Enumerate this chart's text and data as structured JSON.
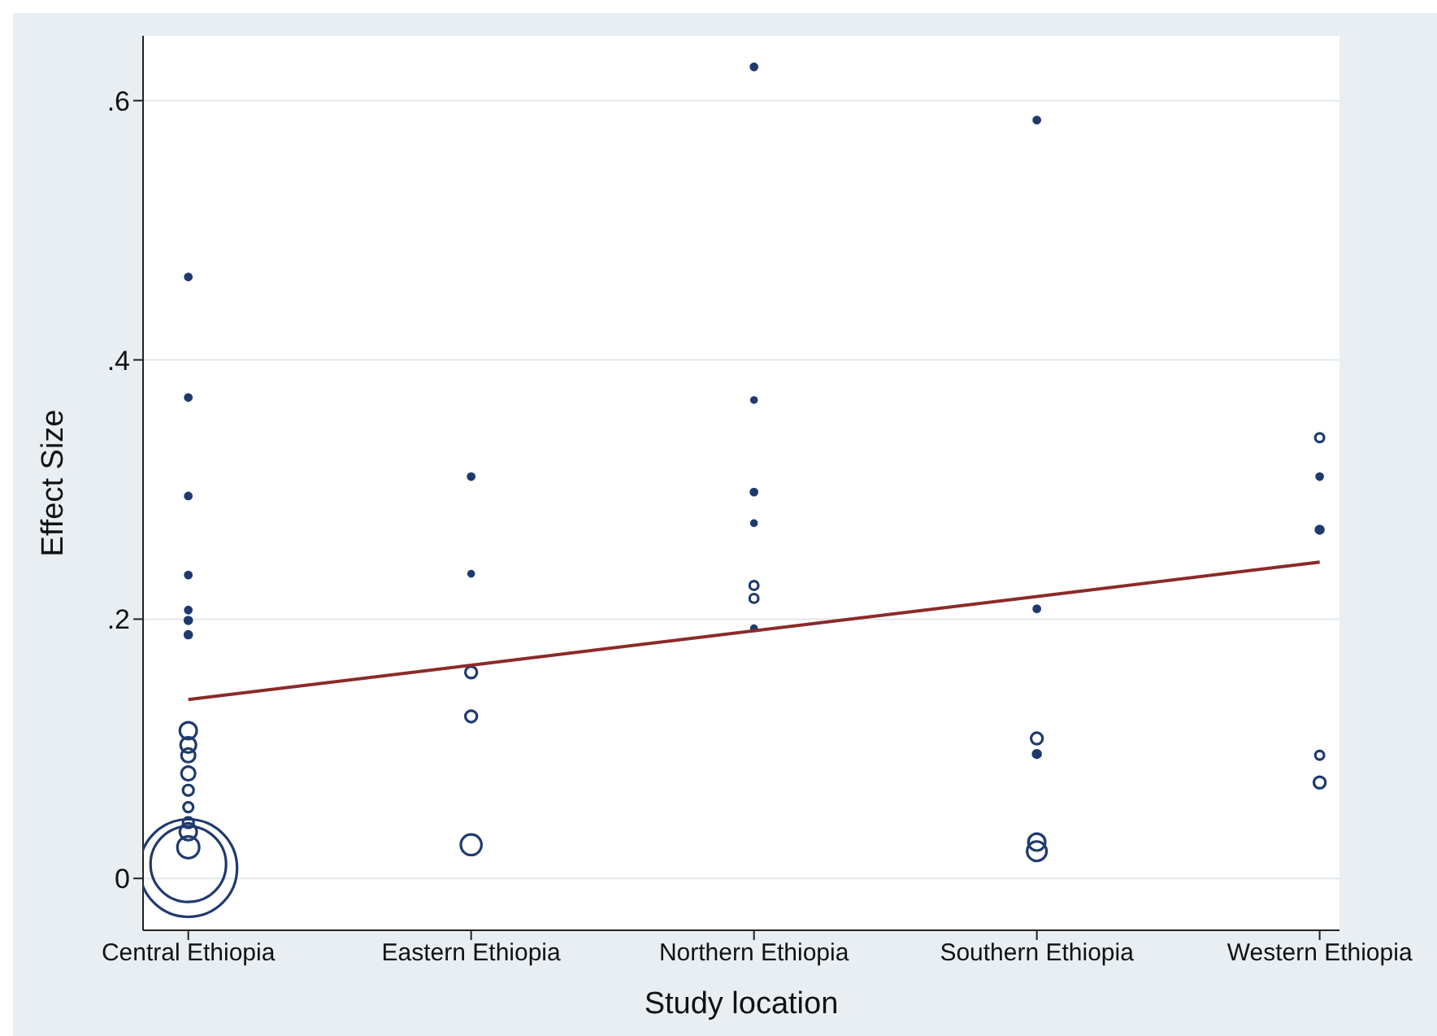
{
  "chart_data": {
    "type": "bubble",
    "xlabel": "Study location",
    "ylabel": "Effect Size",
    "categories": [
      "Central Ethiopia",
      "Eastern Ethiopia",
      "Northern Ethiopia",
      "Southern Ethiopia",
      "Western Ethiopia"
    ],
    "ylim": [
      -0.04,
      0.65
    ],
    "yticks": [
      {
        "value": 0,
        "label": "0"
      },
      {
        "value": 0.2,
        "label": ".2"
      },
      {
        "value": 0.4,
        "label": ".4"
      },
      {
        "value": 0.6,
        "label": ".6"
      }
    ],
    "grid": "y",
    "legend": false,
    "series": [
      {
        "color": "#1f3a6e",
        "x": [
          "Central Ethiopia",
          "Central Ethiopia",
          "Central Ethiopia",
          "Central Ethiopia",
          "Central Ethiopia",
          "Central Ethiopia",
          "Central Ethiopia",
          "Central Ethiopia",
          "Central Ethiopia",
          "Central Ethiopia",
          "Central Ethiopia",
          "Central Ethiopia",
          "Central Ethiopia",
          "Central Ethiopia",
          "Central Ethiopia",
          "Central Ethiopia",
          "Central Ethiopia",
          "Central Ethiopia",
          "Eastern Ethiopia",
          "Eastern Ethiopia",
          "Eastern Ethiopia",
          "Eastern Ethiopia",
          "Eastern Ethiopia",
          "Northern Ethiopia",
          "Northern Ethiopia",
          "Northern Ethiopia",
          "Northern Ethiopia",
          "Northern Ethiopia",
          "Northern Ethiopia",
          "Northern Ethiopia",
          "Southern Ethiopia",
          "Southern Ethiopia",
          "Southern Ethiopia",
          "Southern Ethiopia",
          "Southern Ethiopia",
          "Southern Ethiopia",
          "Western Ethiopia",
          "Western Ethiopia",
          "Western Ethiopia",
          "Western Ethiopia",
          "Western Ethiopia"
        ],
        "values": [
          0.008,
          0.011,
          0.464,
          0.371,
          0.295,
          0.234,
          0.207,
          0.199,
          0.188,
          0.114,
          0.103,
          0.095,
          0.081,
          0.068,
          0.055,
          0.043,
          0.036,
          0.024,
          0.31,
          0.235,
          0.159,
          0.125,
          0.026,
          0.626,
          0.369,
          0.298,
          0.274,
          0.226,
          0.216,
          0.193,
          0.585,
          0.208,
          0.108,
          0.096,
          0.028,
          0.021,
          0.34,
          0.31,
          0.269,
          0.095,
          0.074
        ],
        "sizes": [
          1,
          0.6,
          0.004,
          0.004,
          0.004,
          0.004,
          0.004,
          0.005,
          0.005,
          0.03,
          0.025,
          0.02,
          0.02,
          0.012,
          0.01,
          0.012,
          0.03,
          0.05,
          0.004,
          0.002,
          0.014,
          0.014,
          0.045,
          0.004,
          0.002,
          0.004,
          0.002,
          0.008,
          0.008,
          0.002,
          0.004,
          0.004,
          0.014,
          0.006,
          0.03,
          0.04,
          0.008,
          0.004,
          0.006,
          0.008,
          0.014
        ]
      },
      {
        "type": "line",
        "color": "#8b2a2a",
        "x": [
          "Central Ethiopia",
          "Western Ethiopia"
        ],
        "values": [
          0.138,
          0.244
        ]
      }
    ]
  }
}
